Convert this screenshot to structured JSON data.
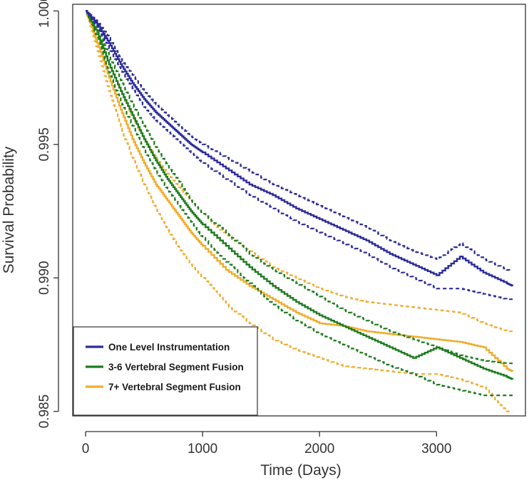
{
  "chart_data": {
    "type": "line",
    "title": "",
    "xlabel": "Time (Days)",
    "ylabel": "Survival Probability",
    "xlim": [
      -110,
      3760
    ],
    "ylim": [
      0.98483,
      1.00025
    ],
    "xticks": [
      0,
      1000,
      2000,
      3000
    ],
    "xtick_labels": [
      "0",
      "1000",
      "2000",
      "3000"
    ],
    "yticks": [
      0.985,
      0.99,
      0.995,
      1.0
    ],
    "ytick_labels": [
      "0.985",
      "0.990",
      "0.995",
      "1.000"
    ],
    "grid": false,
    "legend_position": "bottom-left",
    "series": [
      {
        "name": "One Level Instrumentation",
        "color": "#2b2b9a",
        "x": [
          0,
          100,
          200,
          300,
          400,
          500,
          600,
          700,
          800,
          900,
          1000,
          1200,
          1400,
          1600,
          1800,
          2000,
          2200,
          2400,
          2600,
          2800,
          3000,
          3200,
          3400,
          3600,
          3650
        ],
        "y": [
          1.0,
          0.9995,
          0.9988,
          0.998,
          0.9973,
          0.9967,
          0.9962,
          0.9958,
          0.9954,
          0.995,
          0.9947,
          0.9941,
          0.9935,
          0.9931,
          0.9926,
          0.9922,
          0.9918,
          0.9914,
          0.9909,
          0.9905,
          0.9901,
          0.9908,
          0.9902,
          0.9898,
          0.9897
        ],
        "lower": [
          1.0,
          0.9994,
          0.9986,
          0.9978,
          0.9971,
          0.9964,
          0.9959,
          0.9955,
          0.9951,
          0.9947,
          0.9943,
          0.9937,
          0.9931,
          0.9926,
          0.9921,
          0.9917,
          0.9913,
          0.9909,
          0.9904,
          0.99,
          0.9896,
          0.9896,
          0.9894,
          0.9892,
          0.9892
        ],
        "upper": [
          1.0,
          0.9996,
          0.999,
          0.9982,
          0.9976,
          0.997,
          0.9965,
          0.9961,
          0.9957,
          0.9953,
          0.995,
          0.9945,
          0.994,
          0.9935,
          0.9931,
          0.9927,
          0.9923,
          0.9919,
          0.9914,
          0.991,
          0.9907,
          0.9913,
          0.9907,
          0.9903,
          0.9903
        ]
      },
      {
        "name": "3-6 Vertebral Segment Fusion",
        "color": "#1e7b1e",
        "x": [
          0,
          100,
          200,
          300,
          400,
          500,
          600,
          700,
          800,
          900,
          1000,
          1200,
          1400,
          1600,
          1800,
          2000,
          2200,
          2400,
          2600,
          2800,
          3000,
          3200,
          3400,
          3600,
          3650
        ],
        "y": [
          1.0,
          0.9992,
          0.998,
          0.997,
          0.9961,
          0.9952,
          0.9944,
          0.9937,
          0.9931,
          0.9925,
          0.992,
          0.9912,
          0.9904,
          0.9897,
          0.9891,
          0.9886,
          0.9882,
          0.9878,
          0.9874,
          0.987,
          0.9874,
          0.987,
          0.9866,
          0.9863,
          0.9862
        ],
        "lower": [
          1.0,
          0.999,
          0.9977,
          0.9966,
          0.9957,
          0.9948,
          0.994,
          0.9933,
          0.9927,
          0.9921,
          0.9915,
          0.9906,
          0.9898,
          0.989,
          0.9884,
          0.9879,
          0.9875,
          0.9871,
          0.9867,
          0.9864,
          0.986,
          0.9858,
          0.9856,
          0.9856,
          0.9856
        ],
        "upper": [
          1.0,
          0.9994,
          0.9983,
          0.9974,
          0.9965,
          0.9957,
          0.9949,
          0.9942,
          0.9936,
          0.9929,
          0.9924,
          0.9917,
          0.9909,
          0.9903,
          0.9898,
          0.9893,
          0.9888,
          0.9884,
          0.988,
          0.9877,
          0.9874,
          0.9871,
          0.9869,
          0.9868,
          0.9868
        ]
      },
      {
        "name": "7+ Vertebral Segment Fusion",
        "color": "#f0ac2c",
        "x": [
          0,
          100,
          200,
          300,
          400,
          500,
          600,
          700,
          800,
          900,
          1000,
          1200,
          1400,
          1600,
          1800,
          2000,
          2200,
          2400,
          2600,
          2800,
          3000,
          3200,
          3400,
          3600,
          3650
        ],
        "y": [
          1.0,
          0.9988,
          0.9975,
          0.9963,
          0.9952,
          0.9943,
          0.9935,
          0.9929,
          0.9923,
          0.9917,
          0.9912,
          0.9903,
          0.9897,
          0.9892,
          0.9887,
          0.9883,
          0.9882,
          0.988,
          0.9879,
          0.9878,
          0.9877,
          0.9876,
          0.9874,
          0.9866,
          0.9865
        ],
        "lower": [
          1.0,
          0.9985,
          0.997,
          0.9956,
          0.9945,
          0.9935,
          0.9926,
          0.9918,
          0.9911,
          0.9905,
          0.99,
          0.989,
          0.9883,
          0.9877,
          0.9873,
          0.987,
          0.9867,
          0.9866,
          0.9865,
          0.9864,
          0.9864,
          0.9862,
          0.9859,
          0.985,
          0.985
        ],
        "upper": [
          1.0,
          0.999,
          0.998,
          0.997,
          0.996,
          0.9952,
          0.9945,
          0.9939,
          0.9934,
          0.9929,
          0.9924,
          0.9916,
          0.991,
          0.9904,
          0.99,
          0.9896,
          0.9893,
          0.9891,
          0.989,
          0.9889,
          0.9888,
          0.9887,
          0.9883,
          0.988,
          0.988
        ]
      }
    ]
  }
}
